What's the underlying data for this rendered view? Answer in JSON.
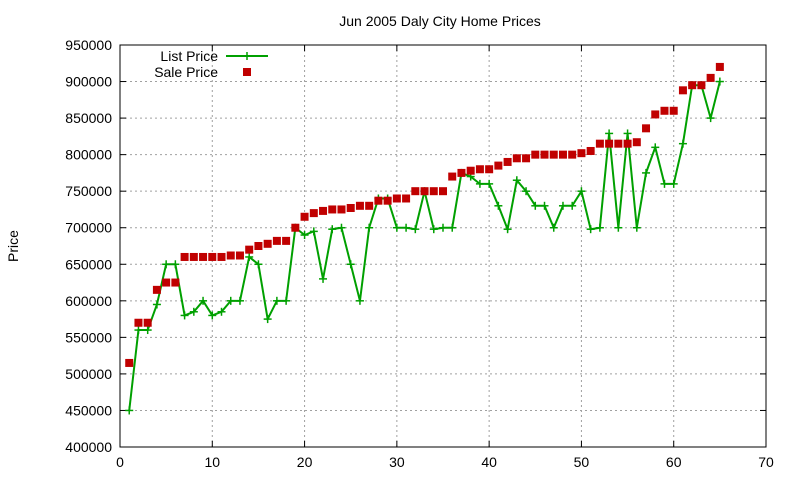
{
  "chart_data": {
    "type": "line",
    "title": "Jun 2005 Daly City Home Prices",
    "xlabel": "",
    "ylabel": "Price",
    "xlim": [
      0,
      70
    ],
    "ylim": [
      400000,
      950000
    ],
    "xticks": [
      0,
      10,
      20,
      30,
      40,
      50,
      60,
      70
    ],
    "yticks": [
      400000,
      450000,
      500000,
      550000,
      600000,
      650000,
      700000,
      750000,
      800000,
      850000,
      900000,
      950000
    ],
    "grid": true,
    "legend_position": "top-left",
    "x": [
      1,
      2,
      3,
      4,
      5,
      6,
      7,
      8,
      9,
      10,
      11,
      12,
      13,
      14,
      15,
      16,
      17,
      18,
      19,
      20,
      21,
      22,
      23,
      24,
      25,
      26,
      27,
      28,
      29,
      30,
      31,
      32,
      33,
      34,
      35,
      36,
      37,
      38,
      39,
      40,
      41,
      42,
      43,
      44,
      45,
      46,
      47,
      48,
      49,
      50,
      51,
      52,
      53,
      54,
      55,
      56,
      57,
      58,
      59,
      60,
      61,
      62,
      63,
      64,
      65
    ],
    "series": [
      {
        "name": "List Price",
        "style": "line-plus",
        "color": "#00a000",
        "values": [
          450000,
          560000,
          560000,
          595000,
          650000,
          650000,
          580000,
          585000,
          600000,
          580000,
          585000,
          600000,
          600000,
          660000,
          650000,
          575000,
          600000,
          600000,
          700000,
          690000,
          695000,
          630000,
          698000,
          700000,
          650000,
          600000,
          700000,
          740000,
          740000,
          700000,
          700000,
          698000,
          750000,
          698000,
          700000,
          700000,
          775000,
          770000,
          760000,
          760000,
          730000,
          698000,
          765000,
          750000,
          730000,
          730000,
          700000,
          730000,
          730000,
          750000,
          698000,
          700000,
          829000,
          700000,
          829000,
          700000,
          775000,
          810000,
          760000,
          760000,
          815000,
          895000,
          895000,
          850000,
          900000
        ]
      },
      {
        "name": "Sale Price",
        "style": "points-square",
        "color": "#c00000",
        "values": [
          515000,
          570000,
          570000,
          615000,
          625000,
          625000,
          660000,
          660000,
          660000,
          660000,
          660000,
          662000,
          662000,
          670000,
          675000,
          678000,
          682000,
          682000,
          700000,
          715000,
          720000,
          723000,
          725000,
          725000,
          727000,
          730000,
          730000,
          737000,
          737000,
          740000,
          740000,
          750000,
          750000,
          750000,
          750000,
          770000,
          775000,
          778000,
          780000,
          780000,
          785000,
          790000,
          795000,
          795000,
          800000,
          800000,
          800000,
          800000,
          800000,
          802000,
          805000,
          815000,
          815000,
          815000,
          815000,
          817000,
          836000,
          855000,
          860000,
          860000,
          888000,
          895000,
          895000,
          905000,
          920000
        ]
      }
    ]
  }
}
